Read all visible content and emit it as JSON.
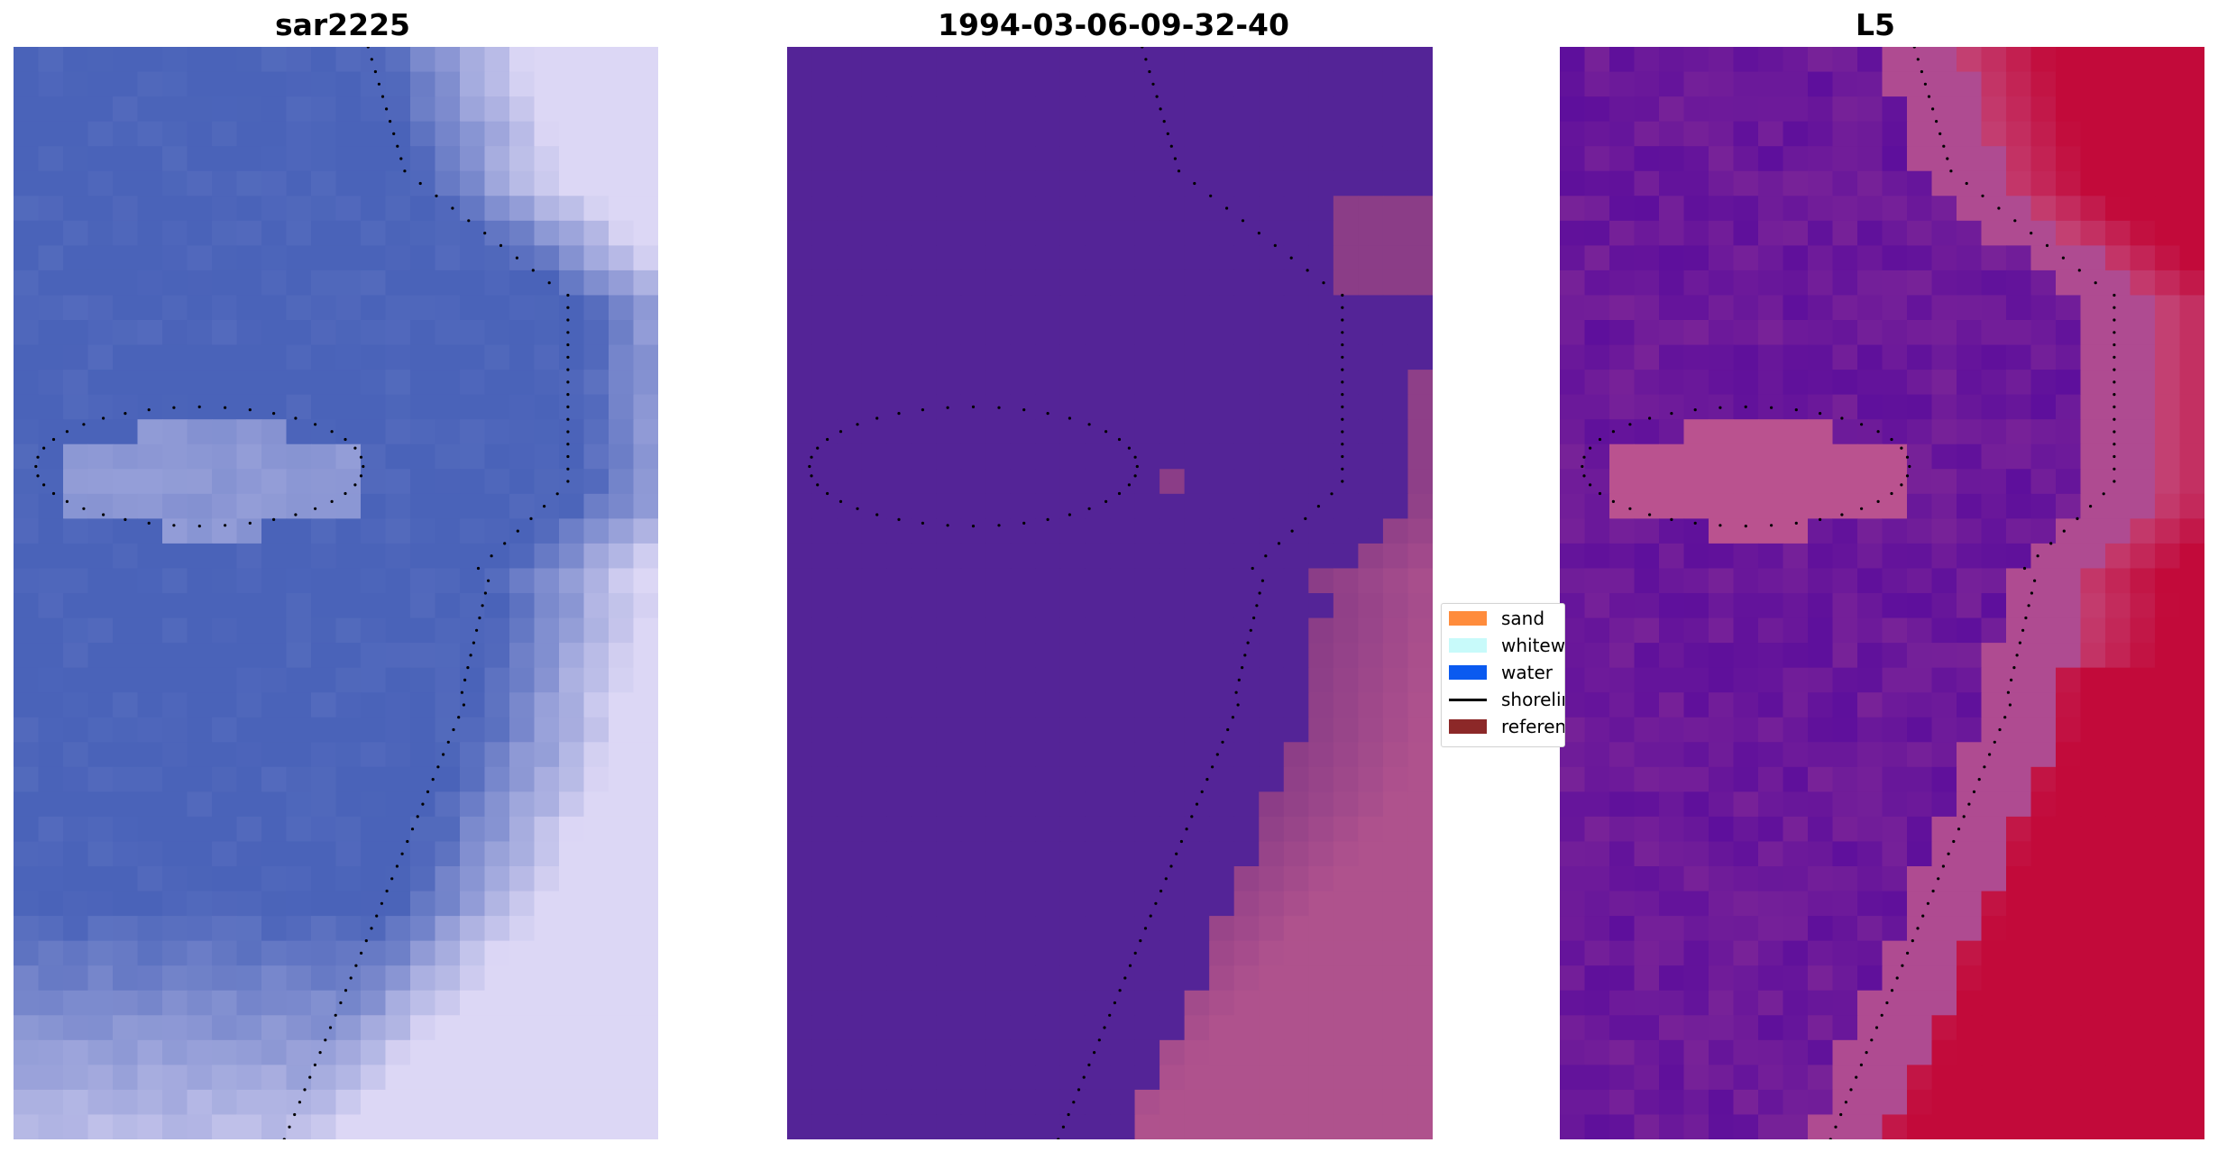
{
  "panels": [
    {
      "title": "sar2225",
      "kind": "rgb"
    },
    {
      "title": "1994-03-06-09-32-40",
      "kind": "classified"
    },
    {
      "title": "L5",
      "kind": "index"
    }
  ],
  "legend": {
    "items": [
      {
        "label": "sand",
        "color": "#ff8c3c",
        "type": "patch"
      },
      {
        "label": "whitewater",
        "color": "#c8fafa",
        "type": "patch"
      },
      {
        "label": "water",
        "color": "#0a5af0",
        "type": "patch"
      },
      {
        "label": "shoreline",
        "color": "#000000",
        "type": "line"
      },
      {
        "label": "reference",
        "color": "#8c2828",
        "type": "patch"
      }
    ]
  },
  "colors": {
    "rgb_base": "#4a63b9",
    "classified_water": "#542497",
    "classified_other": "#8b3d87",
    "classified_pink": "#b8578f",
    "index_low": "#5b0d9c",
    "index_mid": "#c45a8e",
    "index_high": "#c20a3a",
    "shoreline_dots": "#000000"
  }
}
